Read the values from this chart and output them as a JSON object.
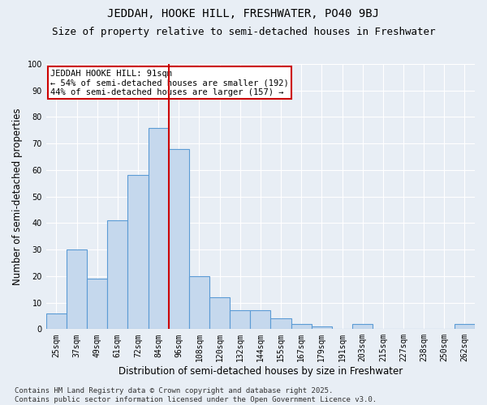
{
  "title": "JEDDAH, HOOKE HILL, FRESHWATER, PO40 9BJ",
  "subtitle": "Size of property relative to semi-detached houses in Freshwater",
  "xlabel": "Distribution of semi-detached houses by size in Freshwater",
  "ylabel": "Number of semi-detached properties",
  "categories": [
    "25sqm",
    "37sqm",
    "49sqm",
    "61sqm",
    "72sqm",
    "84sqm",
    "96sqm",
    "108sqm",
    "120sqm",
    "132sqm",
    "144sqm",
    "155sqm",
    "167sqm",
    "179sqm",
    "191sqm",
    "203sqm",
    "215sqm",
    "227sqm",
    "238sqm",
    "250sqm",
    "262sqm"
  ],
  "values": [
    6,
    30,
    19,
    41,
    58,
    76,
    68,
    20,
    12,
    7,
    7,
    4,
    2,
    1,
    0,
    2,
    0,
    0,
    0,
    0,
    2
  ],
  "bar_color": "#c5d8ed",
  "bar_edge_color": "#5b9bd5",
  "bar_edge_width": 0.8,
  "vline_x": 5.5,
  "vline_color": "#cc0000",
  "annotation_title": "JEDDAH HOOKE HILL: 91sqm",
  "annotation_line2": "← 54% of semi-detached houses are smaller (192)",
  "annotation_line3": "44% of semi-detached houses are larger (157) →",
  "annotation_box_color": "#ffffff",
  "annotation_box_edge": "#cc0000",
  "ylim": [
    0,
    100
  ],
  "yticks": [
    0,
    10,
    20,
    30,
    40,
    50,
    60,
    70,
    80,
    90,
    100
  ],
  "background_color": "#e8eef5",
  "footnote_line1": "Contains HM Land Registry data © Crown copyright and database right 2025.",
  "footnote_line2": "Contains public sector information licensed under the Open Government Licence v3.0.",
  "title_fontsize": 10,
  "subtitle_fontsize": 9,
  "axis_label_fontsize": 8.5,
  "tick_fontsize": 7,
  "annotation_fontsize": 7.5,
  "footnote_fontsize": 6.5
}
